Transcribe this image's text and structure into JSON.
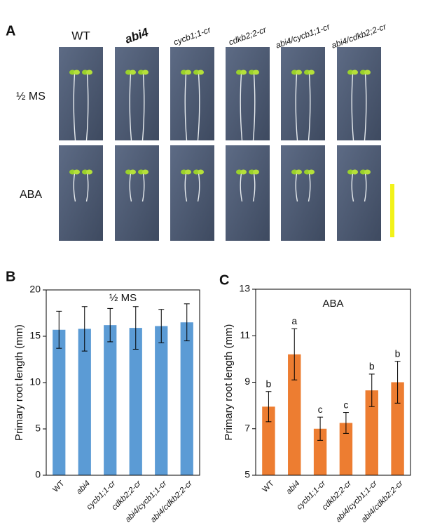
{
  "panel_a": {
    "label": "A",
    "columns": [
      "WT",
      "abi4",
      "cycb1;1-cr",
      "cdkb2;2-cr",
      "abi4/cycb1;1-cr",
      "abi4/cdkb2;2-cr"
    ],
    "rows": [
      "½ MS",
      "ABA"
    ]
  },
  "chart_data": [
    {
      "type": "bar",
      "panel_label": "B",
      "title": "½ MS",
      "ylabel": "Primary root length (mm)",
      "categories": [
        "WT",
        "abi4",
        "cycb1;1-cr",
        "cdkb2;2-cr",
        "abi4/cycb1;1-cr",
        "abi4/cdkb2;2-cr"
      ],
      "values": [
        15.7,
        15.8,
        16.2,
        15.9,
        16.1,
        16.5
      ],
      "errors": [
        2.0,
        2.4,
        1.8,
        2.3,
        1.8,
        2.0
      ],
      "color": "#5b9bd5",
      "ylim": [
        0,
        20
      ],
      "yticks": [
        0,
        5,
        10,
        15,
        20
      ]
    },
    {
      "type": "bar",
      "panel_label": "C",
      "title": "ABA",
      "ylabel": "Primary root length (mm)",
      "categories": [
        "WT",
        "abi4",
        "cycb1;1-cr",
        "cdkb2;2-cr",
        "abi4/cycb1;1-cr",
        "abi4/cdkb2;2-cr"
      ],
      "values": [
        7.95,
        10.2,
        7.0,
        7.25,
        8.65,
        9.0
      ],
      "errors": [
        0.65,
        1.1,
        0.5,
        0.45,
        0.7,
        0.9
      ],
      "annotations": [
        "b",
        "a",
        "c",
        "c",
        "b",
        "b"
      ],
      "color": "#ed7d31",
      "ylim": [
        5,
        13
      ],
      "yticks": [
        5,
        7,
        9,
        11,
        13
      ]
    }
  ]
}
